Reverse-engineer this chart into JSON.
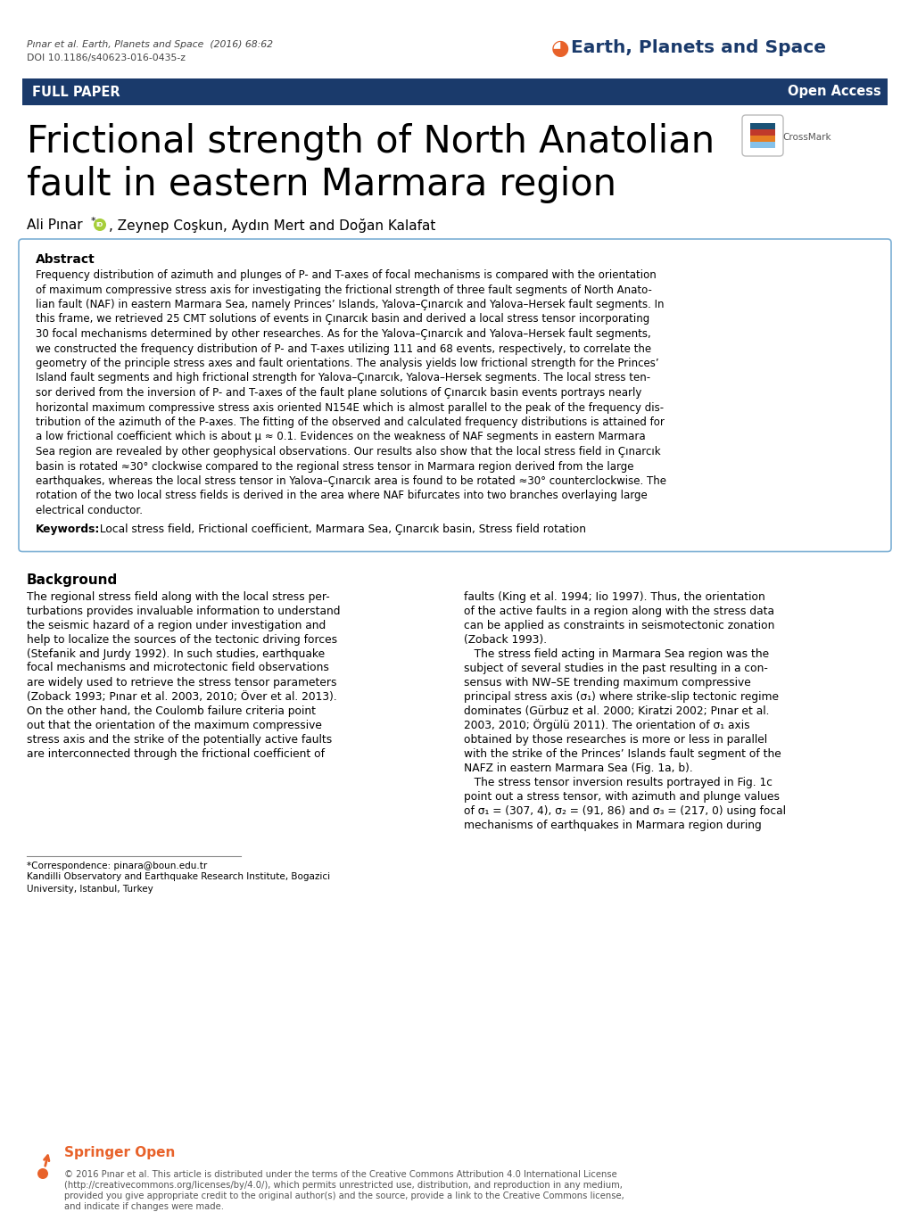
{
  "header_citation": "Pınar et al. Earth, Planets and Space  (2016) 68:62",
  "header_doi": "DOI 10.1186/s40623-016-0435-z",
  "journal_name": "Earth, Planets and Space",
  "banner_text": "FULL PAPER",
  "banner_right": "Open Access",
  "banner_color": "#1a3a6b",
  "paper_title_line1": "Frictional strength of North Anatolian",
  "paper_title_line2": "fault in eastern Marmara region",
  "abstract_title": "Abstract",
  "abstract_lines": [
    "Frequency distribution of azimuth and plunges of P- and T-axes of focal mechanisms is compared with the orientation",
    "of maximum compressive stress axis for investigating the frictional strength of three fault segments of North Anato-",
    "lian fault (NAF) in eastern Marmara Sea, namely Princes’ Islands, Yalova–Çınarcık and Yalova–Hersek fault segments. In",
    "this frame, we retrieved 25 CMT solutions of events in Çınarcık basin and derived a local stress tensor incorporating",
    "30 focal mechanisms determined by other researches. As for the Yalova–Çınarcık and Yalova–Hersek fault segments,",
    "we constructed the frequency distribution of P- and T-axes utilizing 111 and 68 events, respectively, to correlate the",
    "geometry of the principle stress axes and fault orientations. The analysis yields low frictional strength for the Princes’",
    "Island fault segments and high frictional strength for Yalova–Çınarcık, Yalova–Hersek segments. The local stress ten-",
    "sor derived from the inversion of P- and T-axes of the fault plane solutions of Çınarcık basin events portrays nearly",
    "horizontal maximum compressive stress axis oriented N154E which is almost parallel to the peak of the frequency dis-",
    "tribution of the azimuth of the P-axes. The fitting of the observed and calculated frequency distributions is attained for",
    "a low frictional coefficient which is about μ ≈ 0.1. Evidences on the weakness of NAF segments in eastern Marmara",
    "Sea region are revealed by other geophysical observations. Our results also show that the local stress field in Çınarcık",
    "basin is rotated ≈30° clockwise compared to the regional stress tensor in Marmara region derived from the large",
    "earthquakes, whereas the local stress tensor in Yalova–Çınarcık area is found to be rotated ≈30° counterclockwise. The",
    "rotation of the two local stress fields is derived in the area where NAF bifurcates into two branches overlaying large",
    "electrical conductor."
  ],
  "keywords_label": "Keywords:",
  "keywords_text": "  Local stress field, Frictional coefficient, Marmara Sea, Çınarcık basin, Stress field rotation",
  "section_title": "Background",
  "left_col_lines": [
    "The regional stress field along with the local stress per-",
    "turbations provides invaluable information to understand",
    "the seismic hazard of a region under investigation and",
    "help to localize the sources of the tectonic driving forces",
    "(Stefanik and Jurdy 1992). In such studies, earthquake",
    "focal mechanisms and microtectonic field observations",
    "are widely used to retrieve the stress tensor parameters",
    "(Zoback 1993; Pınar et al. 2003, 2010; Över et al. 2013).",
    "On the other hand, the Coulomb failure criteria point",
    "out that the orientation of the maximum compressive",
    "stress axis and the strike of the potentially active faults",
    "are interconnected through the frictional coefficient of"
  ],
  "right_col_lines": [
    "faults (King et al. 1994; Iio 1997). Thus, the orientation",
    "of the active faults in a region along with the stress data",
    "can be applied as constraints in seismotectonic zonation",
    "(Zoback 1993).",
    "   The stress field acting in Marmara Sea region was the",
    "subject of several studies in the past resulting in a con-",
    "sensus with NW–SE trending maximum compressive",
    "principal stress axis (σ₁) where strike-slip tectonic regime",
    "dominates (Gürbuz et al. 2000; Kiratzi 2002; Pınar et al.",
    "2003, 2010; Örgülü 2011). The orientation of σ₁ axis",
    "obtained by those researches is more or less in parallel",
    "with the strike of the Princes’ Islands fault segment of the",
    "NAFZ in eastern Marmara Sea (Fig. 1a, b).",
    "   The stress tensor inversion results portrayed in Fig. 1c",
    "point out a stress tensor, with azimuth and plunge values",
    "of σ₁ = (307, 4), σ₂ = (91, 86) and σ₃ = (217, 0) using focal",
    "mechanisms of earthquakes in Marmara region during"
  ],
  "footnote_lines": [
    "*Correspondence: pinara@boun.edu.tr",
    "Kandilli Observatory and Earthquake Research Institute, Bogazici",
    "University, Istanbul, Turkey"
  ],
  "footer_license_lines": [
    "© 2016 Pınar et al. This article is distributed under the terms of the Creative Commons Attribution 4.0 International License",
    "(http://creativecommons.org/licenses/by/4.0/), which permits unrestricted use, distribution, and reproduction in any medium,",
    "provided you give appropriate credit to the original author(s) and the source, provide a link to the Creative Commons license,",
    "and indicate if changes were made."
  ],
  "bg_color": "#ffffff",
  "text_color": "#000000",
  "dark_blue": "#1a3a6b",
  "orange": "#e8622a",
  "link_blue": "#3465a4",
  "light_blue_border": "#7bafd4",
  "light_gray": "#aaaaaa"
}
